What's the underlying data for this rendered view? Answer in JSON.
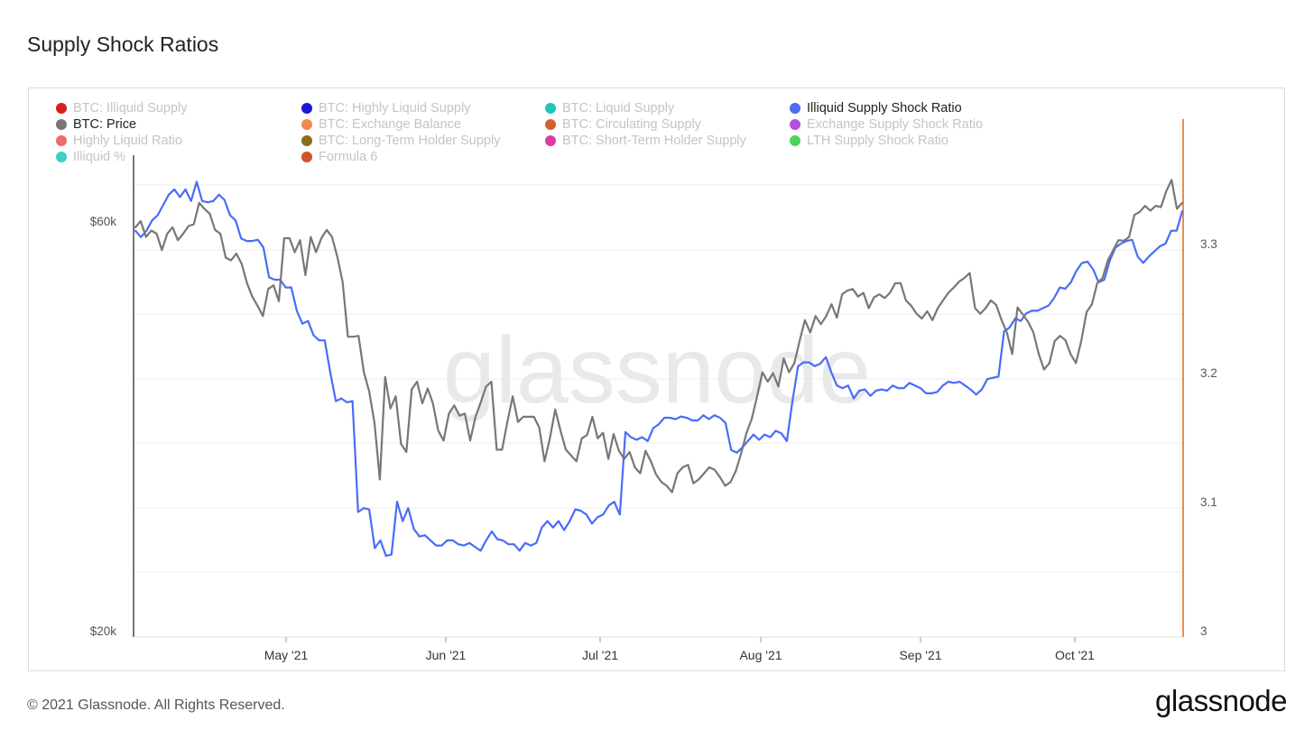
{
  "page": {
    "title": "Supply Shock Ratios",
    "copyright": "© 2021 Glassnode. All Rights Reserved.",
    "logo": "glassnode",
    "watermark": "glassnode"
  },
  "legend": [
    {
      "label": "BTC: Illiquid Supply",
      "color": "#d62020",
      "active": false
    },
    {
      "label": "BTC: Highly Liquid Supply",
      "color": "#1a1ad6",
      "active": false
    },
    {
      "label": "BTC: Liquid Supply",
      "color": "#1cc8b8",
      "active": false
    },
    {
      "label": "Illiquid Supply Shock Ratio",
      "color": "#4a6cf7",
      "active": true
    },
    {
      "label": "BTC: Price",
      "color": "#777777",
      "active": true
    },
    {
      "label": "BTC: Exchange Balance",
      "color": "#f08a4b",
      "active": false
    },
    {
      "label": "BTC: Circulating Supply",
      "color": "#d2622a",
      "active": false
    },
    {
      "label": "Exchange Supply Shock Ratio",
      "color": "#b84ddb",
      "active": false
    },
    {
      "label": "Highly Liquid Ratio",
      "color": "#ee6b6b",
      "active": false
    },
    {
      "label": "BTC: Long-Term Holder Supply",
      "color": "#8a6b1e",
      "active": false
    },
    {
      "label": "BTC: Short-Term Holder Supply",
      "color": "#e03aa0",
      "active": false
    },
    {
      "label": "LTH Supply Shock Ratio",
      "color": "#4fd45a",
      "active": false
    },
    {
      "label": "Illiquid %",
      "color": "#3dcfc4",
      "active": false
    },
    {
      "label": "Formula 6",
      "color": "#d2522a",
      "active": false
    }
  ],
  "chart_data": {
    "type": "line",
    "x_tick_labels": [
      "May '21",
      "Jun '21",
      "Jul '21",
      "Aug '21",
      "Sep '21",
      "Oct '21"
    ],
    "y_left": {
      "scale": "log",
      "ticks": [
        "$60k",
        "$20k"
      ],
      "range": [
        20000,
        70000
      ]
    },
    "y_right": {
      "scale": "linear",
      "ticks": [
        "3.3",
        "3.2",
        "3.1",
        "3"
      ],
      "range": [
        3.0,
        3.4
      ]
    },
    "grid": true,
    "series": [
      {
        "name": "Illiquid Supply Shock Ratio",
        "axis": "right",
        "color": "#4a6cf7",
        "values": [
          3.31,
          3.305,
          3.31,
          3.318,
          3.322,
          3.33,
          3.338,
          3.342,
          3.336,
          3.342,
          3.333,
          3.348,
          3.333,
          3.332,
          3.333,
          3.338,
          3.334,
          3.322,
          3.318,
          3.304,
          3.302,
          3.302,
          3.303,
          3.297,
          3.274,
          3.272,
          3.272,
          3.266,
          3.266,
          3.248,
          3.238,
          3.24,
          3.229,
          3.225,
          3.225,
          3.2,
          3.178,
          3.18,
          3.177,
          3.178,
          3.092,
          3.095,
          3.094,
          3.064,
          3.07,
          3.058,
          3.059,
          3.1,
          3.085,
          3.095,
          3.079,
          3.073,
          3.074,
          3.07,
          3.066,
          3.066,
          3.07,
          3.07,
          3.067,
          3.066,
          3.068,
          3.065,
          3.062,
          3.07,
          3.077,
          3.071,
          3.07,
          3.067,
          3.067,
          3.062,
          3.068,
          3.066,
          3.068,
          3.08,
          3.085,
          3.08,
          3.085,
          3.078,
          3.085,
          3.094,
          3.093,
          3.09,
          3.083,
          3.088,
          3.09,
          3.097,
          3.1,
          3.09,
          3.154,
          3.15,
          3.148,
          3.15,
          3.147,
          3.157,
          3.16,
          3.165,
          3.165,
          3.164,
          3.166,
          3.165,
          3.163,
          3.163,
          3.167,
          3.164,
          3.167,
          3.165,
          3.161,
          3.14,
          3.138,
          3.142,
          3.147,
          3.152,
          3.148,
          3.152,
          3.15,
          3.155,
          3.153,
          3.147,
          3.178,
          3.205,
          3.208,
          3.208,
          3.205,
          3.207,
          3.212,
          3.2,
          3.19,
          3.188,
          3.19,
          3.18,
          3.186,
          3.187,
          3.182,
          3.186,
          3.187,
          3.186,
          3.19,
          3.188,
          3.188,
          3.192,
          3.19,
          3.188,
          3.184,
          3.184,
          3.185,
          3.19,
          3.193,
          3.192,
          3.193,
          3.19,
          3.187,
          3.183,
          3.187,
          3.195,
          3.196,
          3.197,
          3.232,
          3.235,
          3.242,
          3.24,
          3.246,
          3.248,
          3.248,
          3.25,
          3.252,
          3.258,
          3.266,
          3.265,
          3.27,
          3.279,
          3.285,
          3.286,
          3.28,
          3.27,
          3.272,
          3.287,
          3.297,
          3.3,
          3.302,
          3.303,
          3.29,
          3.285,
          3.29,
          3.294,
          3.298,
          3.3,
          3.31,
          3.31,
          3.325
        ]
      },
      {
        "name": "BTC: Price",
        "axis": "left",
        "color": "#777777",
        "values": [
          59000,
          60000,
          57500,
          58500,
          58000,
          55500,
          58000,
          59000,
          57000,
          58000,
          59200,
          59500,
          63000,
          62000,
          61200,
          58600,
          58000,
          54400,
          54000,
          55000,
          53500,
          50800,
          49000,
          47800,
          46500,
          50000,
          50500,
          48400,
          57300,
          57300,
          55200,
          57000,
          51900,
          57500,
          55200,
          57300,
          58600,
          57500,
          54500,
          51000,
          44000,
          44000,
          44100,
          40000,
          38000,
          34900,
          30000,
          39500,
          36300,
          37500,
          33000,
          32300,
          38200,
          39000,
          36800,
          38300,
          36800,
          34200,
          33300,
          35800,
          36600,
          35600,
          35800,
          33300,
          35500,
          36900,
          38500,
          39000,
          32500,
          32500,
          35000,
          37500,
          35000,
          35500,
          35500,
          35500,
          34500,
          31500,
          33500,
          36200,
          34200,
          32500,
          32000,
          31500,
          33500,
          33800,
          35500,
          33500,
          34000,
          31700,
          33900,
          32400,
          31700,
          32300,
          31000,
          30500,
          32400,
          31500,
          30400,
          29800,
          29500,
          29000,
          30500,
          31000,
          31200,
          29700,
          30000,
          30500,
          31000,
          30800,
          30200,
          29500,
          29800,
          30700,
          32200,
          34000,
          35300,
          37500,
          40000,
          39000,
          39900,
          38500,
          41500,
          40000,
          41000,
          43500,
          46000,
          44500,
          46500,
          45500,
          46500,
          48000,
          46300,
          49300,
          49800,
          50000,
          49000,
          49500,
          47500,
          48900,
          49300,
          48800,
          49500,
          50800,
          50800,
          48500,
          47800,
          46800,
          46200,
          47100,
          46000,
          47500,
          48500,
          49500,
          50200,
          51000,
          51500,
          52200,
          47500,
          46800,
          47500,
          48500,
          47900,
          46000,
          44500,
          42000,
          47600,
          46700,
          45800,
          44500,
          42000,
          40300,
          41000,
          43500,
          44100,
          43600,
          42000,
          41000,
          43500,
          47000,
          48000,
          50800,
          51500,
          54000,
          55500,
          57000,
          56900,
          57500,
          61000,
          61500,
          62500,
          61700,
          62500,
          62300,
          65000,
          67000,
          62000,
          63000
        ]
      }
    ]
  }
}
